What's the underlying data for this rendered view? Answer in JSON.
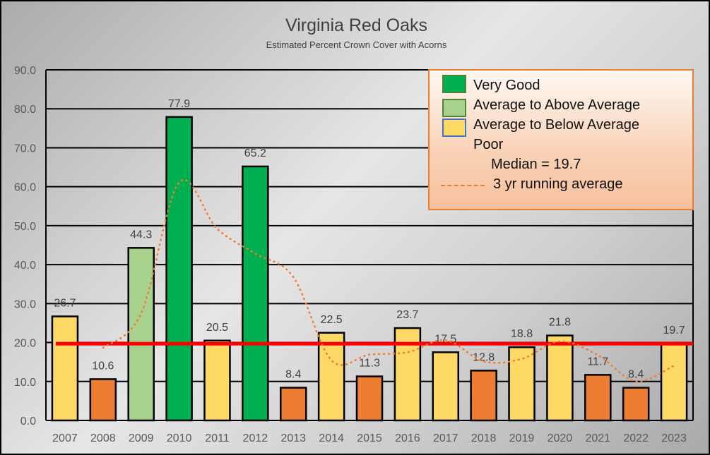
{
  "chart_data": {
    "type": "bar",
    "title": "Virginia Red Oaks",
    "subtitle": "Estimated Percent Crown Cover with Acorns",
    "categories": [
      "2007",
      "2008",
      "2009",
      "2010",
      "2011",
      "2012",
      "2013",
      "2014",
      "2015",
      "2016",
      "2017",
      "2018",
      "2019",
      "2020",
      "2021",
      "2022",
      "2023"
    ],
    "values": [
      26.7,
      10.6,
      44.3,
      77.9,
      20.5,
      65.2,
      8.4,
      22.5,
      11.3,
      23.7,
      17.5,
      12.8,
      18.8,
      21.8,
      11.7,
      8.4,
      19.7
    ],
    "value_labels": [
      "26.7",
      "10.6",
      "44.3",
      "77.9",
      "20.5",
      "65.2",
      "8.4",
      "22.5",
      "11.3",
      "23.7",
      "17.5",
      "12.8",
      "18.8",
      "21.8",
      "11.7",
      "8.4",
      "19.7"
    ],
    "categories_class": [
      "avg_below",
      "poor",
      "above",
      "very_good",
      "avg_below",
      "very_good",
      "poor",
      "avg_below",
      "poor",
      "avg_below",
      "avg_below",
      "poor",
      "avg_below",
      "avg_below",
      "poor",
      "poor",
      "avg_below"
    ],
    "colors": {
      "very_good": "#00b050",
      "above": "#a9d18e",
      "avg_below": "#ffd966",
      "poor": "#ed7d31",
      "median": "#ff0000",
      "running": "#ed7d31"
    },
    "median": 19.7,
    "running_average": {
      "x": [
        "2008",
        "2009",
        "2010",
        "2011",
        "2012",
        "2013",
        "2014",
        "2015",
        "2016",
        "2017",
        "2018",
        "2019",
        "2020",
        "2021",
        "2022",
        "2023"
      ],
      "values": [
        18.65,
        27.45,
        61.1,
        49.2,
        42.85,
        36.8,
        15.45,
        16.9,
        17.5,
        20.6,
        15.15,
        15.8,
        20.3,
        16.75,
        10.05,
        14.05
      ]
    },
    "ylim": [
      0,
      90
    ],
    "yticks": [
      "0.0",
      "10.0",
      "20.0",
      "30.0",
      "40.0",
      "50.0",
      "60.0",
      "70.0",
      "80.0",
      "90.0"
    ],
    "grid": true,
    "legend_placement": "top-right",
    "legend": {
      "very_good": "Very Good",
      "above": "Average to Above Average",
      "avg_below": "Average to Below Average",
      "poor": "Poor",
      "median": "Median = 19.7",
      "running": "3 yr running average"
    }
  }
}
